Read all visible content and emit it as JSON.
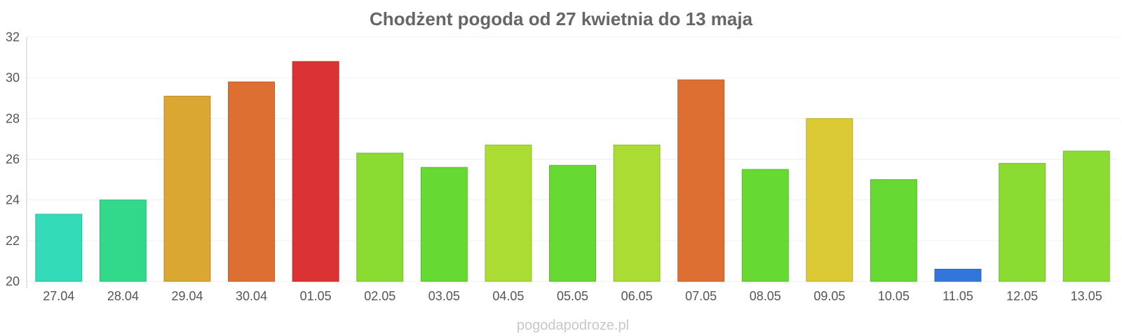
{
  "chart_data": {
    "type": "bar",
    "title": "Chodżent pogoda od 27 kwietnia do 13 maja",
    "xlabel": "",
    "ylabel": "",
    "ylim": [
      20,
      32
    ],
    "yticks": [
      "20",
      "22",
      "24",
      "26",
      "28",
      "30",
      "32"
    ],
    "categories": [
      "27.04",
      "28.04",
      "29.04",
      "30.04",
      "01.05",
      "02.05",
      "03.05",
      "04.05",
      "05.05",
      "06.05",
      "07.05",
      "08.05",
      "09.05",
      "10.05",
      "11.05",
      "12.05",
      "13.05"
    ],
    "values": [
      23.3,
      24.0,
      29.1,
      29.8,
      30.8,
      26.3,
      25.6,
      26.7,
      25.7,
      26.7,
      29.9,
      25.5,
      28.0,
      25.0,
      20.6,
      25.8,
      26.4
    ],
    "colors": [
      "#33dbb8",
      "#33d98a",
      "#daa733",
      "#de6f33",
      "#db3333",
      "#8adc33",
      "#66da33",
      "#aadc33",
      "#66da33",
      "#aadc33",
      "#de6f33",
      "#66da33",
      "#dbca33",
      "#66da33",
      "#3376db",
      "#8adc33",
      "#8adc33"
    ],
    "grid": true,
    "legend": "none"
  },
  "watermark": "pogodapodroze.pl"
}
